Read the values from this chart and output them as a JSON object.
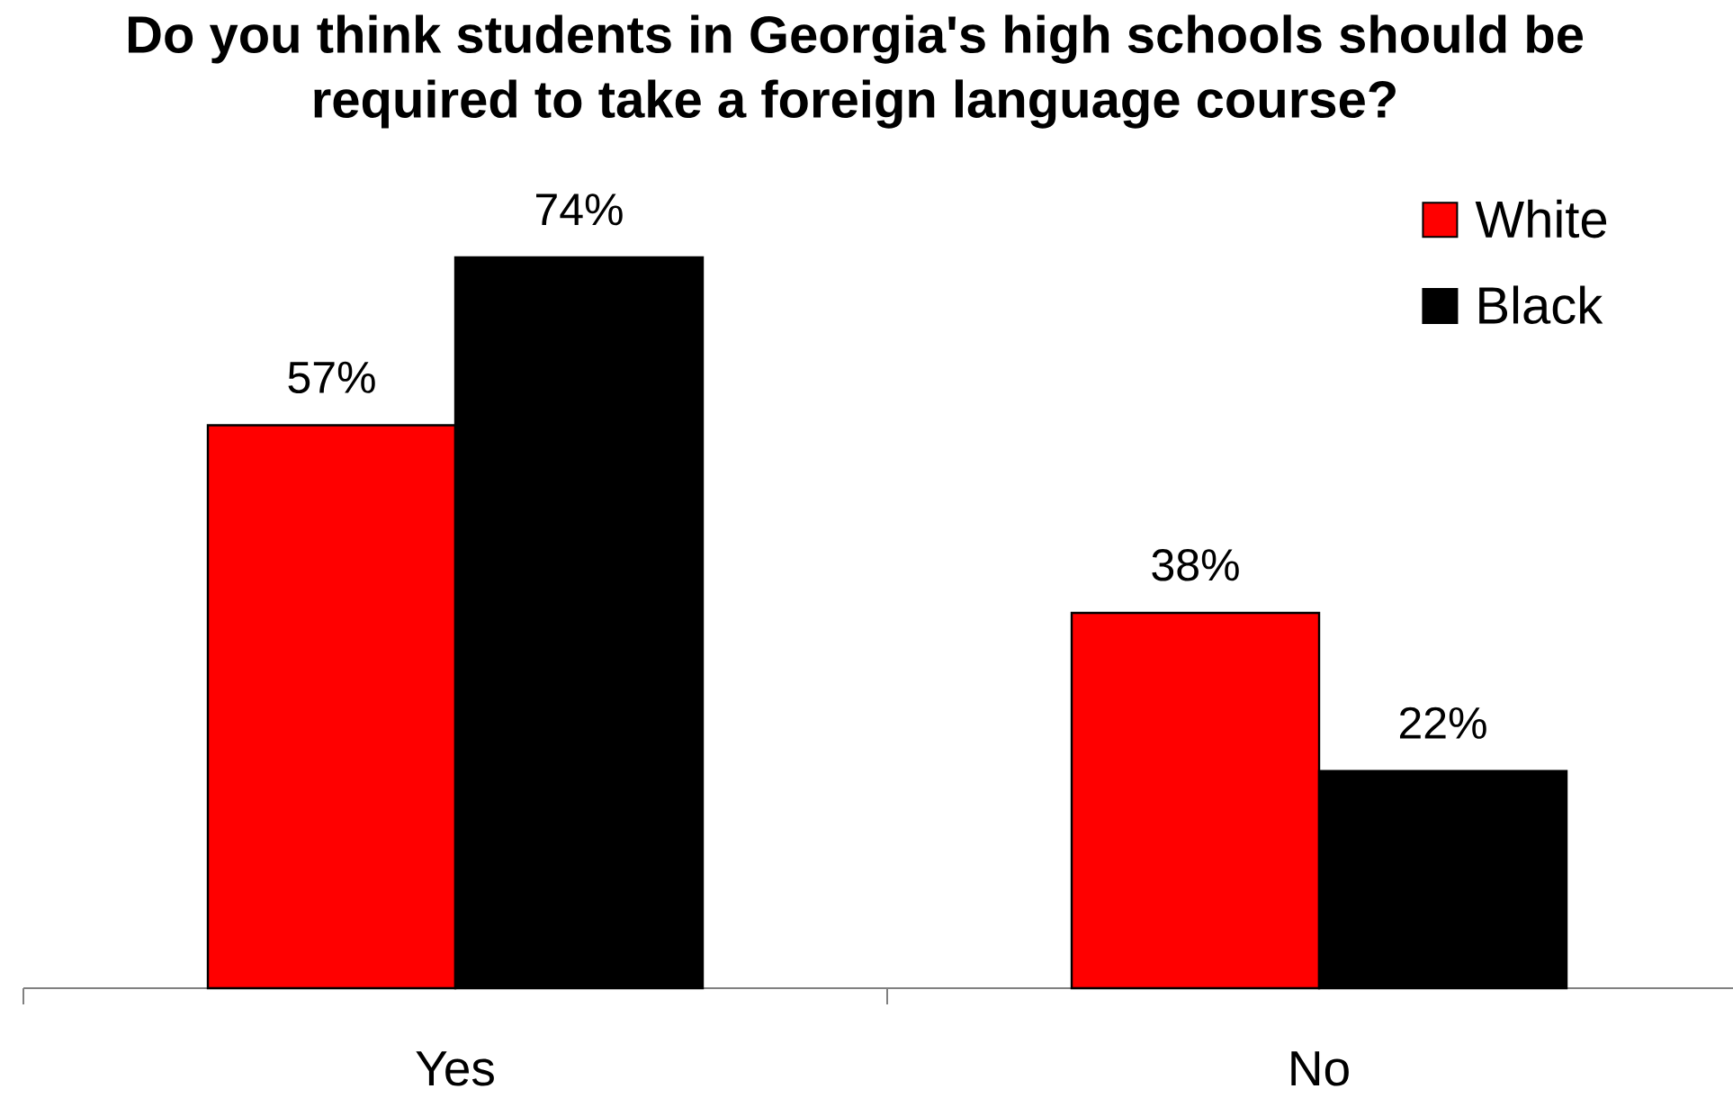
{
  "chart_data": {
    "type": "bar",
    "title": "Do you think students in Georgia's high schools should be required to take a foreign language course?",
    "categories": [
      "Yes",
      "No"
    ],
    "series": [
      {
        "name": "White",
        "color": "#ff0000",
        "values": [
          57,
          38
        ],
        "value_labels": [
          "57%",
          "38%"
        ]
      },
      {
        "name": "Black",
        "color": "#000000",
        "values": [
          74,
          22
        ],
        "value_labels": [
          "74%",
          "22%"
        ]
      }
    ],
    "legend": "top right"
  }
}
